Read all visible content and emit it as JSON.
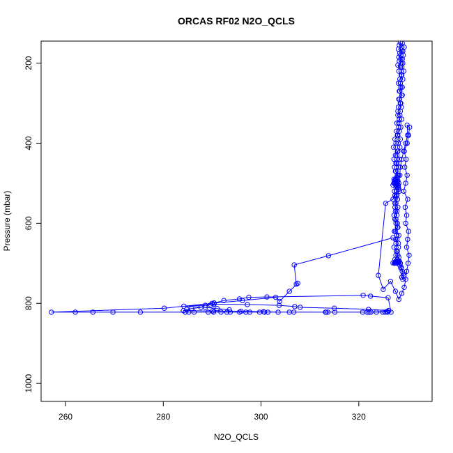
{
  "chart_data": {
    "type": "line",
    "title": "ORCAS RF02 N2O_QCLS",
    "xlabel": "N2O_QCLS",
    "ylabel": "Pressure (mbar)",
    "xlim": [
      255,
      335
    ],
    "ylim": [
      1045,
      145
    ],
    "y_reversed": true,
    "x_ticks": [
      260,
      280,
      300,
      320
    ],
    "y_ticks": [
      200,
      400,
      600,
      800,
      1000
    ],
    "grid": false,
    "legend": "none",
    "markers": "open-circle",
    "color": "#0000ff",
    "series": [
      {
        "x": [
          328.5,
          328.3,
          328.8,
          328.1,
          329.0,
          328.4,
          328.6,
          328.2,
          328.9,
          328.3,
          328.7,
          328.0,
          328.5,
          328.2,
          328.8,
          328.4,
          328.1,
          328.6,
          328.3,
          328.9,
          328.2,
          328.5,
          328.7,
          328.0,
          328.4,
          328.8,
          328.2,
          328.6,
          328.3,
          327.9,
          328.5,
          328.1,
          328.4,
          328.0,
          327.8,
          328.3,
          327.6,
          328.2,
          327.5,
          327.9,
          327.2,
          327.8,
          327.4,
          327.0,
          327.6,
          327.3,
          327.8,
          327.5,
          327.9,
          327.6,
          327.4,
          327.8,
          327.2,
          327.6,
          327.9,
          328.0,
          327.5,
          328.2,
          327.8,
          327.6,
          328.1,
          327.7,
          328.0,
          327.4,
          327.9,
          327.6,
          328.2,
          327.5,
          327.0,
          327.8,
          327.3,
          327.9,
          327.6,
          328.1,
          327.4,
          327.7,
          328.0,
          327.5,
          328.2,
          327.8,
          328.4,
          328.6,
          328.9,
          329.2,
          329.0,
          328.8,
          329.1,
          328.7,
          328.5,
          328.3,
          327.9,
          328.2,
          327.6,
          327.9,
          327.2,
          328.1,
          327.5,
          327.8,
          327.3,
          327.9,
          327.6,
          327.4,
          327.8,
          327.5,
          328.0,
          327.4,
          327.9,
          327.7,
          328.3,
          328.1,
          327.6,
          327.2,
          327.5,
          327.9,
          327.3,
          327.6,
          327.8,
          327.5,
          327.2,
          327.8,
          327.6,
          327.9,
          328.2,
          327.7,
          327.4,
          327.0,
          325.5,
          324.0,
          325.0,
          326.5,
          327.5,
          328.2,
          328.8,
          329.3,
          329.6,
          329.8,
          330.1,
          330.3,
          329.8,
          330.0,
          330.2,
          329.6,
          329.8,
          329.5,
          330.0,
          329.2,
          329.6,
          329.9,
          329.4,
          329.7,
          329.3,
          329.9,
          330.2,
          330.4,
          329.9,
          330.0,
          329.6,
          329.2,
          328.8,
          328.5,
          328.4,
          328.2,
          328.1,
          327.9,
          327.7,
          328.0,
          327.5,
          327.8,
          328.1,
          327.6,
          327.3,
          327.8,
          327.2,
          327.5,
          327.9,
          327.1,
          327.6,
          327.4,
          328.0,
          327.7,
          328.2,
          327.8,
          328.3,
          328.0,
          328.5,
          328.1,
          328.6,
          328.3,
          328.8,
          328.4,
          328.9,
          328.5,
          329.0,
          328.7,
          329.2,
          328.8,
          329.0,
          328.6,
          329.1,
          328.8,
          329.3,
          328.9
        ],
        "y": [
          148,
          155,
          160,
          165,
          170,
          175,
          180,
          185,
          190,
          195,
          200,
          205,
          210,
          220,
          230,
          240,
          250,
          260,
          270,
          280,
          290,
          300,
          310,
          320,
          330,
          340,
          350,
          360,
          370,
          380,
          390,
          400,
          410,
          420,
          430,
          440,
          450,
          460,
          470,
          480,
          490,
          495,
          500,
          505,
          510,
          520,
          530,
          535,
          540,
          550,
          560,
          570,
          580,
          590,
          600,
          610,
          620,
          630,
          640,
          650,
          660,
          670,
          680,
          690,
          695,
          697,
          698,
          696,
          699,
          697,
          700,
          695,
          698,
          696,
          699,
          697,
          694,
          698,
          696,
          700,
          705,
          712,
          720,
          730,
          740,
          735,
          725,
          710,
          700,
          695,
          690,
          685,
          680,
          670,
          660,
          650,
          640,
          630,
          620,
          610,
          600,
          590,
          580,
          570,
          560,
          550,
          540,
          530,
          520,
          510,
          505,
          500,
          498,
          496,
          494,
          492,
          495,
          497,
          499,
          500,
          505,
          510,
          515,
          520,
          530,
          540,
          550,
          730,
          765,
          745,
          770,
          790,
          775,
          760,
          740,
          720,
          700,
          680,
          660,
          640,
          620,
          600,
          580,
          560,
          540,
          520,
          500,
          480,
          460,
          440,
          420,
          400,
          380,
          360,
          355,
          380,
          400,
          420,
          440,
          460,
          480,
          500,
          505,
          502,
          498,
          494,
          490,
          485,
          480,
          470,
          460,
          450,
          440,
          430,
          420,
          410,
          400,
          390,
          380,
          370,
          360,
          350,
          340,
          330,
          320,
          310,
          300,
          290,
          280,
          270,
          260,
          250,
          240,
          230,
          220,
          210,
          200,
          190,
          180,
          170,
          160,
          150
        ]
      },
      {
        "x": [
          327.0,
          313.8,
          306.8,
          307.2,
          307.5,
          305.8,
          303.8,
          303.0,
          296.2,
          290.0,
          280.2,
          257.1,
          262.0,
          265.6,
          269.7,
          275.3,
          284.5,
          285.2,
          286.3,
          289.2,
          290.3,
          291.8,
          293.0,
          293.7,
          295.6,
          296.9,
          297.7,
          299.7,
          300.7,
          301.4,
          305.8,
          313.3,
          313.7,
          315.1,
          320.8,
          321.7,
          322.1,
          323.6,
          324.9,
          325.4,
          325.9,
          326.6,
          326.0,
          322.4,
          320.9,
          301.2,
          297.5,
          295.6,
          292.4,
          290.4,
          288.6,
          287.7,
          285.8,
          284.8,
          284.1,
          290.1,
          295.9,
          300.5,
          303.5,
          306.7,
          313.2,
          322.5,
          325.8,
          326.1,
          322.0,
          315.0,
          308.0,
          306.9,
          303.7,
          297.2,
          290.4,
          289.7,
          284.2,
          288.6,
          291.0,
          293.5
        ],
        "y": [
          636,
          681,
          704,
          752,
          750,
          770,
          795,
          785,
          793,
          800,
          812,
          822,
          822,
          822,
          822,
          822,
          822,
          822,
          822,
          822,
          822,
          822,
          822,
          822,
          822,
          822,
          822,
          822,
          822,
          822,
          822,
          822,
          822,
          822,
          822,
          822,
          822,
          822,
          822,
          822,
          822,
          822,
          786,
          782,
          780,
          784,
          785,
          789,
          793,
          799,
          805,
          810,
          813,
          815,
          818,
          819,
          820,
          821,
          822,
          822,
          822,
          822,
          820,
          818,
          815,
          812,
          810,
          808,
          805,
          803,
          802,
          804,
          807,
          810,
          813,
          816
        ]
      }
    ]
  }
}
